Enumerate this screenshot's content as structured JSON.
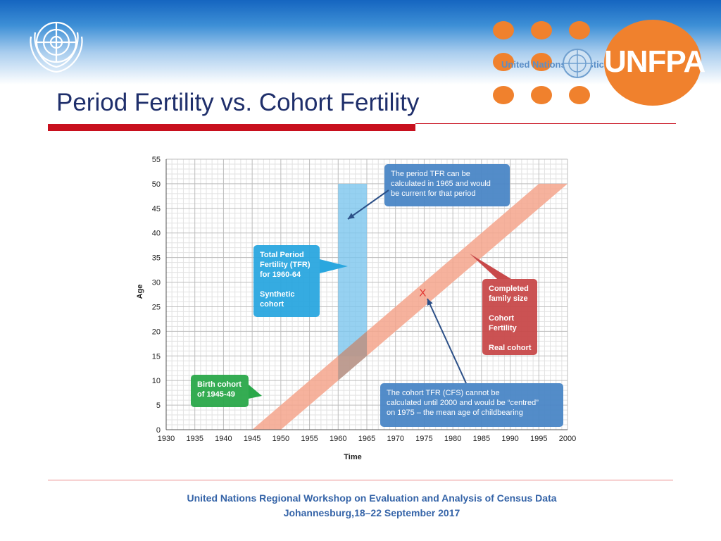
{
  "slide": {
    "title": "Period Fertility vs. Cohort Fertility",
    "logo_text": "United Nations Statistics",
    "unfpa_label": "UNFPA",
    "footer_line1": "United Nations Regional Workshop on Evaluation and Analysis of Census Data",
    "footer_line2": "Johannesburg,18–22 September 2017",
    "colors": {
      "accent_red": "#c8101e",
      "title_blue": "#1f2f6b",
      "unfpa_orange": "#f0812d",
      "footer_blue": "#3564a8"
    }
  },
  "chart_data": {
    "type": "area",
    "title": "",
    "xlabel": "Time",
    "ylabel": "Age",
    "xlim": [
      1930,
      2000
    ],
    "ylim": [
      0,
      55
    ],
    "x_ticks": [
      1930,
      1935,
      1940,
      1945,
      1950,
      1955,
      1960,
      1965,
      1970,
      1975,
      1980,
      1985,
      1990,
      1995,
      2000
    ],
    "y_ticks": [
      0,
      5,
      10,
      15,
      20,
      25,
      30,
      35,
      40,
      45,
      50,
      55
    ],
    "grid": true,
    "period_band": {
      "x_from": 1960,
      "x_to": 1965,
      "age_from": 15,
      "age_to": 50,
      "color": "#7cc6ee"
    },
    "cohort_band": {
      "birth_from": 1945,
      "birth_to": 1950,
      "age_from": 0,
      "age_to": 50,
      "color": "#f4a48c"
    },
    "cfs_marker": {
      "label": "X",
      "x": 1975,
      "y": 28
    },
    "callouts": [
      {
        "id": "period-tfr",
        "lines": [
          "The period TFR can be",
          "calculated in 1965 and would",
          "be current for that period"
        ],
        "color": "#4a86c6"
      },
      {
        "id": "total-period",
        "lines": [
          "Total Period",
          "Fertility (TFR)",
          "for 1960-64",
          "",
          "Synthetic",
          "cohort"
        ],
        "color": "#2aa7df"
      },
      {
        "id": "completed",
        "lines": [
          "Completed",
          "family size",
          "",
          "Cohort",
          "Fertility",
          "",
          "Real cohort"
        ],
        "color": "#c8494a"
      },
      {
        "id": "birth-cohort",
        "lines": [
          "Birth cohort",
          "of 1945-49"
        ],
        "color": "#2aa84a"
      },
      {
        "id": "cohort-tfr",
        "lines": [
          "The cohort TFR (CFS) cannot be",
          "calculated until 2000 and would be “centred”",
          "on 1975 – the mean age of childbearing"
        ],
        "color": "#4a86c6"
      }
    ]
  }
}
